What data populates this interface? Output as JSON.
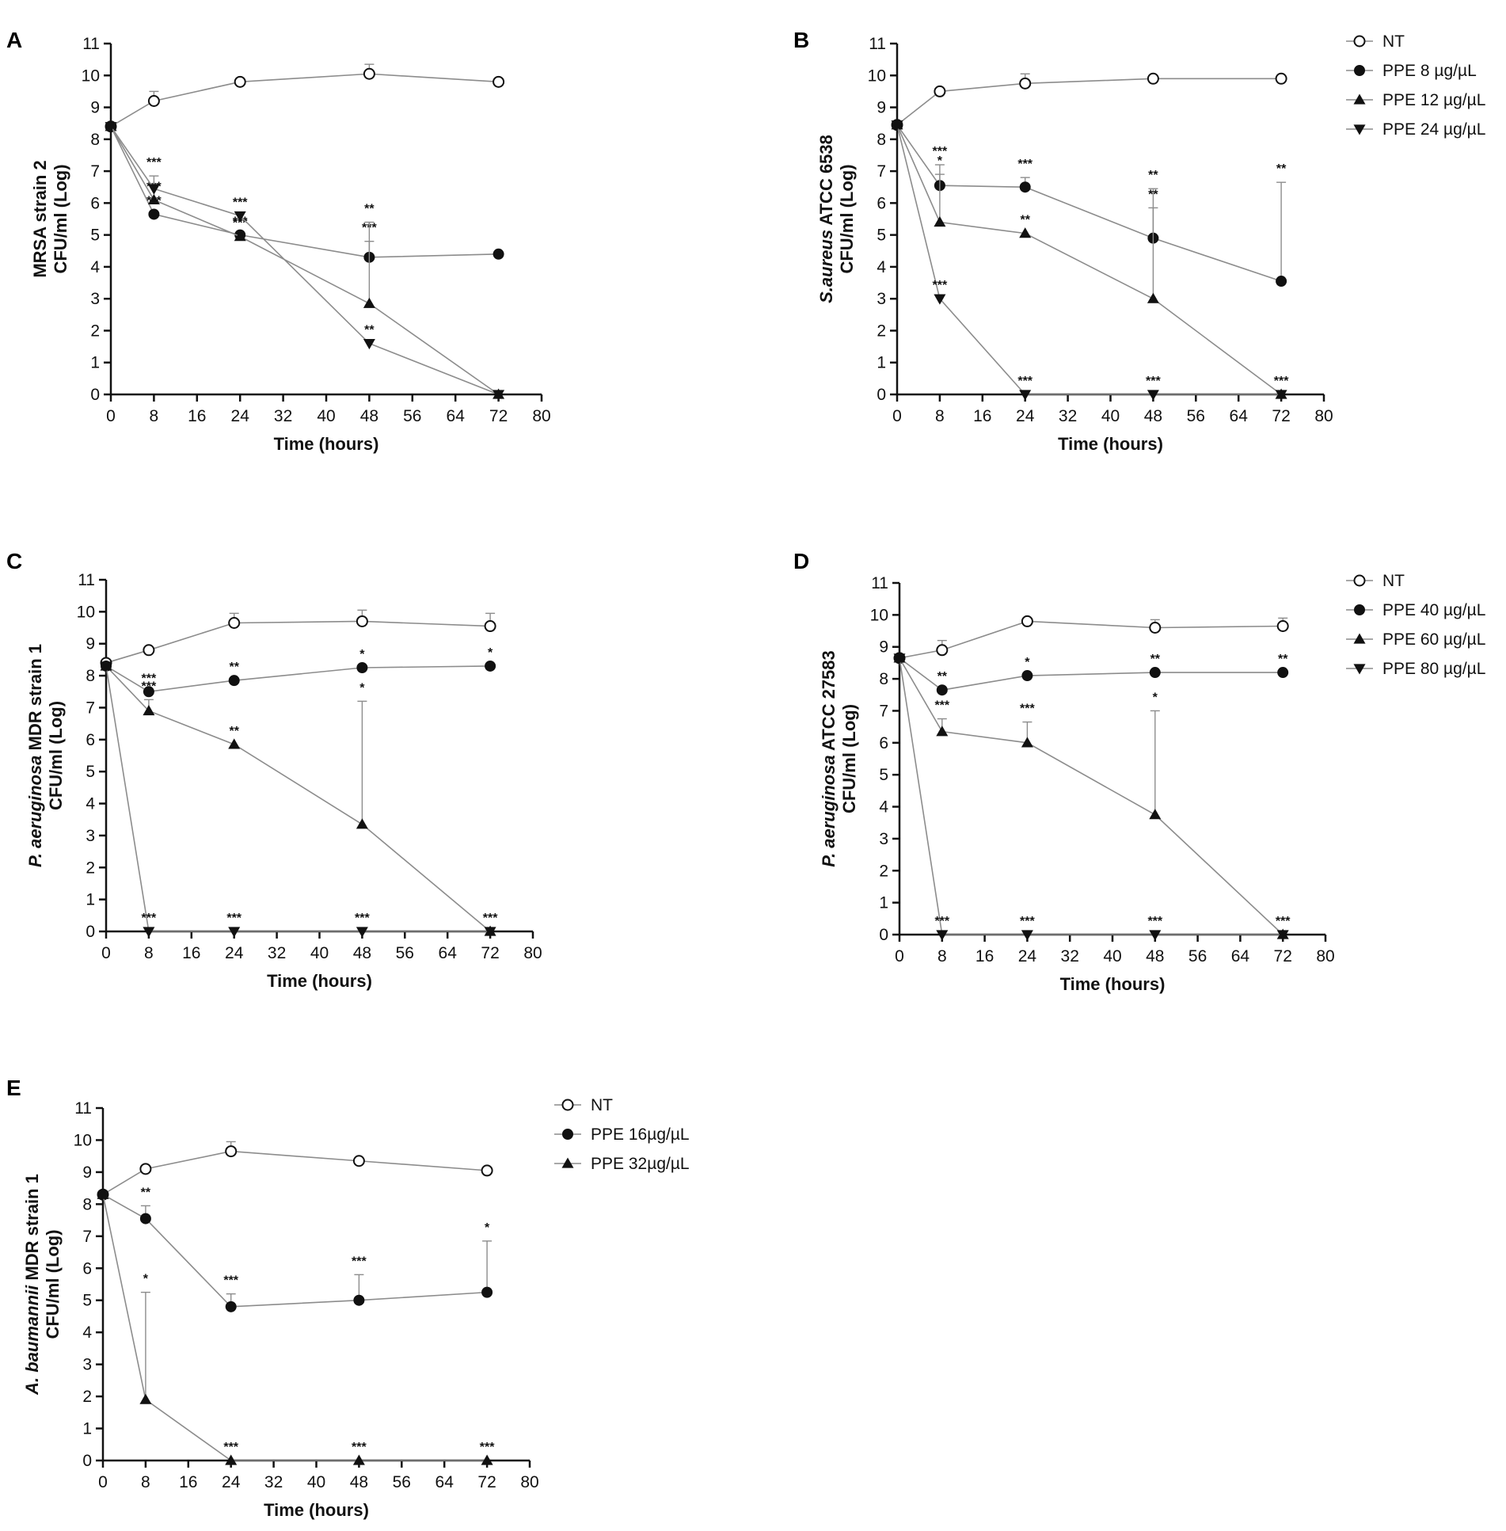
{
  "figure": {
    "x_ticks": [
      0,
      8,
      16,
      24,
      32,
      40,
      48,
      56,
      64,
      72,
      80
    ],
    "y_ticks": [
      0,
      1,
      2,
      3,
      4,
      5,
      6,
      7,
      8,
      9,
      10,
      11
    ]
  },
  "chart_data": [
    {
      "panel": "A",
      "type": "line",
      "ylabel_italic": "",
      "ylabel_rest": "MRSA strain 2",
      "ylabel2": "CFU/ml (Log)",
      "xlabel": "Time (hours)",
      "xlim": [
        0,
        80
      ],
      "ylim": [
        0,
        11
      ],
      "x": [
        0,
        8,
        24,
        48,
        72
      ],
      "series": [
        {
          "name": "NT",
          "marker": "open-circle",
          "values": [
            8.4,
            9.2,
            9.8,
            10.05,
            9.8
          ],
          "err": [
            0,
            0.3,
            0,
            0.3,
            0
          ],
          "sig": [
            "",
            "",
            "",
            "",
            ""
          ]
        },
        {
          "name": "PPE 8 µg/µL",
          "marker": "circle",
          "values": [
            8.4,
            5.65,
            5.0,
            4.3,
            4.4
          ],
          "err": [
            0,
            0,
            0,
            0.5,
            0
          ],
          "sig": [
            "",
            "***",
            "***",
            "***",
            ""
          ]
        },
        {
          "name": "PPE 12 µg/µL",
          "marker": "triangle-up",
          "values": [
            8.4,
            6.1,
            4.95,
            2.85,
            0
          ],
          "err": [
            0,
            0,
            0,
            2.55,
            0
          ],
          "sig": [
            "",
            "***",
            "***",
            "**",
            ""
          ]
        },
        {
          "name": "PPE 24 µg/µL",
          "marker": "triangle-down",
          "values": [
            8.4,
            6.45,
            5.6,
            1.6,
            0
          ],
          "err": [
            0,
            0.4,
            0,
            0,
            0
          ],
          "sig": [
            "",
            "***",
            "***",
            "**",
            ""
          ]
        }
      ]
    },
    {
      "panel": "B",
      "type": "line",
      "ylabel_italic": "S.aureus",
      "ylabel_rest": " ATCC 6538",
      "ylabel2": "CFU/ml (Log)",
      "xlabel": "Time (hours)",
      "xlim": [
        0,
        80
      ],
      "ylim": [
        0,
        11
      ],
      "x": [
        0,
        8,
        24,
        48,
        72
      ],
      "legend": [
        "NT",
        "PPE 8 µg/µL",
        "PPE 12 µg/µL",
        "PPE 24 µg/µL"
      ],
      "series": [
        {
          "name": "NT",
          "marker": "open-circle",
          "values": [
            8.45,
            9.5,
            9.75,
            9.9,
            9.9
          ],
          "err": [
            0,
            0,
            0.3,
            0,
            0
          ],
          "sig": [
            "",
            "",
            "",
            "",
            ""
          ]
        },
        {
          "name": "PPE 8 µg/µL",
          "marker": "circle",
          "values": [
            8.45,
            6.55,
            6.5,
            4.9,
            3.55
          ],
          "err": [
            0,
            0.65,
            0.3,
            1.55,
            3.1
          ],
          "sig": [
            "",
            "***",
            "***",
            "**",
            "**"
          ]
        },
        {
          "name": "PPE 12 µg/µL",
          "marker": "triangle-up",
          "values": [
            8.45,
            5.4,
            5.05,
            3.0,
            0
          ],
          "err": [
            0,
            1.5,
            0,
            2.85,
            0
          ],
          "sig": [
            "",
            "*",
            "**",
            "**",
            ""
          ]
        },
        {
          "name": "PPE 24 µg/µL",
          "marker": "triangle-down",
          "values": [
            8.45,
            3.0,
            0,
            0,
            0
          ],
          "err": [
            0,
            0,
            0,
            0,
            0
          ],
          "sig": [
            "",
            "***",
            "***",
            "***",
            "***"
          ]
        }
      ]
    },
    {
      "panel": "C",
      "type": "line",
      "ylabel_italic": "P. aeruginosa",
      "ylabel_rest": " MDR strain 1",
      "ylabel2": "CFU/ml (Log)",
      "xlabel": "Time (hours)",
      "xlim": [
        0,
        80
      ],
      "ylim": [
        0,
        11
      ],
      "x": [
        0,
        8,
        24,
        48,
        72
      ],
      "series": [
        {
          "name": "NT",
          "marker": "open-circle",
          "values": [
            8.4,
            8.8,
            9.65,
            9.7,
            9.55
          ],
          "err": [
            0,
            0,
            0.3,
            0.35,
            0.4
          ],
          "sig": [
            "",
            "",
            "",
            "",
            ""
          ]
        },
        {
          "name": "PPE 40 µg/µL",
          "marker": "circle",
          "values": [
            8.3,
            7.5,
            7.85,
            8.25,
            8.3
          ],
          "err": [
            0,
            0,
            0,
            0,
            0
          ],
          "sig": [
            "",
            "***",
            "**",
            "*",
            "*"
          ]
        },
        {
          "name": "PPE 60 µg/µL",
          "marker": "triangle-up",
          "values": [
            8.3,
            6.9,
            5.85,
            3.35,
            0
          ],
          "err": [
            0,
            0.35,
            0,
            3.85,
            0
          ],
          "sig": [
            "",
            "***",
            "**",
            "*",
            ""
          ]
        },
        {
          "name": "PPE 80 µg/µL",
          "marker": "triangle-down",
          "values": [
            8.3,
            0,
            0,
            0,
            0
          ],
          "err": [
            0,
            0,
            0,
            0,
            0
          ],
          "sig": [
            "",
            "***",
            "***",
            "***",
            "***"
          ]
        }
      ]
    },
    {
      "panel": "D",
      "type": "line",
      "ylabel_italic": "P. aeruginosa",
      "ylabel_rest": " ATCC 27583",
      "ylabel2": "CFU/ml (Log)",
      "xlabel": "Time (hours)",
      "xlim": [
        0,
        80
      ],
      "ylim": [
        0,
        11
      ],
      "x": [
        0,
        8,
        24,
        48,
        72
      ],
      "legend": [
        "NT",
        "PPE 40 µg/µL",
        "PPE 60 µg/µL",
        "PPE 80 µg/µL"
      ],
      "series": [
        {
          "name": "NT",
          "marker": "open-circle",
          "values": [
            8.65,
            8.9,
            9.8,
            9.6,
            9.65
          ],
          "err": [
            0,
            0.3,
            0,
            0.25,
            0.25
          ],
          "sig": [
            "",
            "",
            "",
            "",
            ""
          ]
        },
        {
          "name": "PPE 40 µg/µL",
          "marker": "circle",
          "values": [
            8.65,
            7.65,
            8.1,
            8.2,
            8.2
          ],
          "err": [
            0,
            0,
            0,
            0,
            0
          ],
          "sig": [
            "",
            "**",
            "*",
            "**",
            "**"
          ]
        },
        {
          "name": "PPE 60 µg/µL",
          "marker": "triangle-up",
          "values": [
            8.65,
            6.35,
            6.0,
            3.75,
            0
          ],
          "err": [
            0,
            0.4,
            0.65,
            3.25,
            0
          ],
          "sig": [
            "",
            "***",
            "***",
            "*",
            ""
          ]
        },
        {
          "name": "PPE 80 µg/µL",
          "marker": "triangle-down",
          "values": [
            8.65,
            0,
            0,
            0,
            0
          ],
          "err": [
            0,
            0,
            0,
            0,
            0
          ],
          "sig": [
            "",
            "***",
            "***",
            "***",
            "***"
          ]
        }
      ]
    },
    {
      "panel": "E",
      "type": "line",
      "ylabel_italic": "A. baumannii",
      "ylabel_rest": " MDR strain 1",
      "ylabel2": "CFU/ml (Log)",
      "xlabel": "Time (hours)",
      "xlim": [
        0,
        80
      ],
      "ylim": [
        0,
        11
      ],
      "x": [
        0,
        8,
        24,
        48,
        72
      ],
      "legend": [
        "NT",
        "PPE 16µg/µL",
        "PPE 32µg/µL"
      ],
      "series": [
        {
          "name": "NT",
          "marker": "open-circle",
          "values": [
            8.3,
            9.1,
            9.65,
            9.35,
            9.05
          ],
          "err": [
            0,
            0,
            0.3,
            0,
            0
          ],
          "sig": [
            "",
            "",
            "",
            "",
            ""
          ]
        },
        {
          "name": "PPE 16µg/µL",
          "marker": "circle",
          "values": [
            8.3,
            7.55,
            4.8,
            5.0,
            5.25
          ],
          "err": [
            0,
            0.4,
            0.4,
            0.8,
            1.6
          ],
          "sig": [
            "",
            "**",
            "***",
            "***",
            "*"
          ]
        },
        {
          "name": "PPE 32µg/µL",
          "marker": "triangle-up",
          "values": [
            8.3,
            1.9,
            0,
            0,
            0
          ],
          "err": [
            0,
            3.35,
            0,
            0,
            0
          ],
          "sig": [
            "",
            "*",
            "***",
            "***",
            "***"
          ]
        }
      ]
    }
  ]
}
